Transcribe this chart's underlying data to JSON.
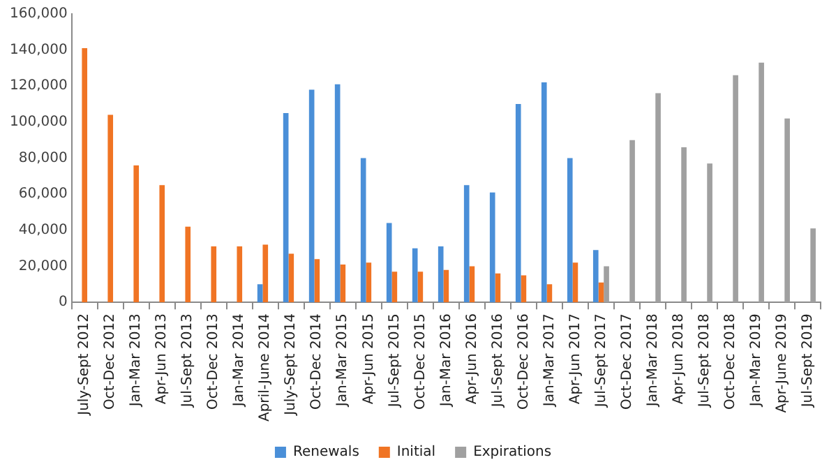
{
  "chart_data": {
    "type": "bar",
    "categories": [
      "July-Sept 2012",
      "Oct-Dec 2012",
      "Jan-Mar 2013",
      "Apr-Jun 2013",
      "Jul-Sept 2013",
      "Oct-Dec 2013",
      "Jan-Mar 2014",
      "April-June 2014",
      "July-Sept 2014",
      "Oct-Dec 2014",
      "Jan-Mar 2015",
      "Apr-Jun 2015",
      "Jul-Sept 2015",
      "Oct-Dec 2015",
      "Jan-Mar 2016",
      "Apr-Jun 2016",
      "Jul-Sept 2016",
      "Oct-Dec 2016",
      "Jan-Mar 2017",
      "Apr-Jun 2017",
      "Jul-Sept 2017",
      "Oct-Dec 2017",
      "Jan-Mar 2018",
      "Apr-Jun 2018",
      "Jul-Sept 2018",
      "Oct-Dec 2018",
      "Jan-Mar 2019",
      "Apr-June 2019",
      "Jul-Sept 2019"
    ],
    "series": [
      {
        "name": "Renewals",
        "color": "#4a8fd8",
        "values": [
          null,
          null,
          null,
          null,
          null,
          null,
          null,
          10000,
          105000,
          118000,
          121000,
          80000,
          44000,
          30000,
          31000,
          65000,
          61000,
          110000,
          122000,
          80000,
          29000,
          null,
          null,
          null,
          null,
          null,
          null,
          null,
          null
        ]
      },
      {
        "name": "Initial",
        "color": "#f07424",
        "values": [
          141000,
          104000,
          76000,
          65000,
          42000,
          31000,
          31000,
          32000,
          27000,
          24000,
          21000,
          22000,
          17000,
          17000,
          18000,
          20000,
          16000,
          15000,
          10000,
          22000,
          11000,
          null,
          null,
          null,
          null,
          null,
          null,
          null,
          null
        ]
      },
      {
        "name": "Expirations",
        "color": "#a0a0a0",
        "values": [
          null,
          null,
          null,
          null,
          null,
          null,
          null,
          null,
          null,
          null,
          null,
          null,
          null,
          null,
          null,
          null,
          null,
          null,
          null,
          null,
          20000,
          90000,
          116000,
          86000,
          77000,
          126000,
          133000,
          102000,
          41000
        ]
      }
    ],
    "ylim": [
      0,
      160000
    ],
    "yticks": [
      0,
      {
        "value": 20000,
        "label": "20,000"
      },
      {
        "value": 40000,
        "label": "40,000"
      },
      {
        "value": 60000,
        "label": "60,000"
      },
      {
        "value": 80000,
        "label": "80,000"
      },
      {
        "value": 100000,
        "label": "100,000"
      },
      {
        "value": 120000,
        "label": "120,000"
      },
      {
        "value": 140000,
        "label": "140,000"
      },
      {
        "value": 160000,
        "label": "160,000"
      }
    ],
    "grid": false,
    "legend": "bottom"
  }
}
